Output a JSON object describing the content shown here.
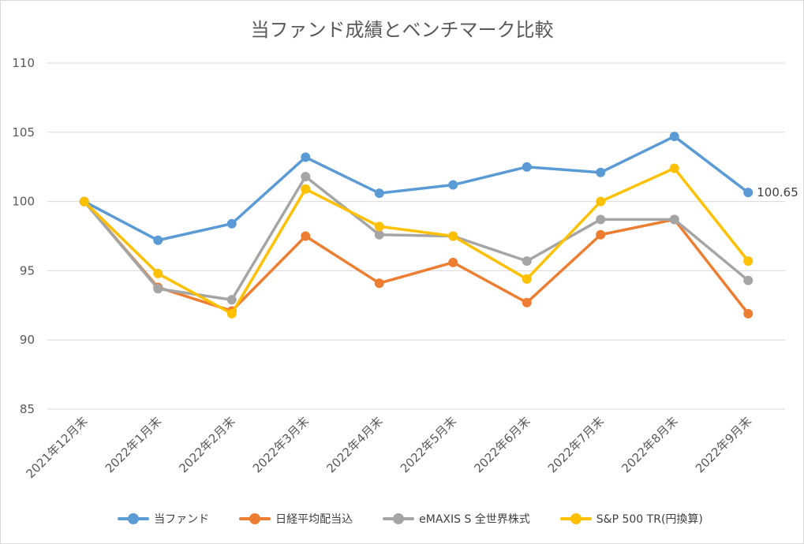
{
  "chart_data": {
    "type": "line",
    "title": "当ファンド成績とベンチマーク比較",
    "categories": [
      "2021年12月末",
      "2022年1月末",
      "2022年2月末",
      "2022年3月末",
      "2022年4月末",
      "2022年5月末",
      "2022年6月末",
      "2022年7月末",
      "2022年8月末",
      "2022年9月末"
    ],
    "ylim": [
      85,
      110
    ],
    "yticks": [
      "85",
      "90",
      "95",
      "100",
      "105",
      "110"
    ],
    "grid": true,
    "legend_position": "bottom",
    "series": [
      {
        "name": "当ファンド",
        "color": "#5b9bd5",
        "values": [
          100,
          97.2,
          98.4,
          103.2,
          100.6,
          101.2,
          102.5,
          102.1,
          104.7,
          100.65
        ]
      },
      {
        "name": "日経平均配当込",
        "color": "#ed7d31",
        "values": [
          100,
          93.8,
          92.1,
          97.5,
          94.1,
          95.6,
          92.7,
          97.6,
          98.7,
          91.9
        ]
      },
      {
        "name": "eMAXIS S 全世界株式",
        "color": "#a5a5a5",
        "values": [
          100,
          93.7,
          92.9,
          101.8,
          97.6,
          97.5,
          95.7,
          98.7,
          98.7,
          94.3
        ]
      },
      {
        "name": "S&P 500 TR(円換算)",
        "color": "#ffc000",
        "values": [
          100,
          94.8,
          91.9,
          100.9,
          98.2,
          97.5,
          94.4,
          100.0,
          102.4,
          95.7
        ]
      }
    ],
    "annotations": [
      {
        "series": "当ファンド",
        "index": 9,
        "text": "100.65"
      }
    ]
  }
}
